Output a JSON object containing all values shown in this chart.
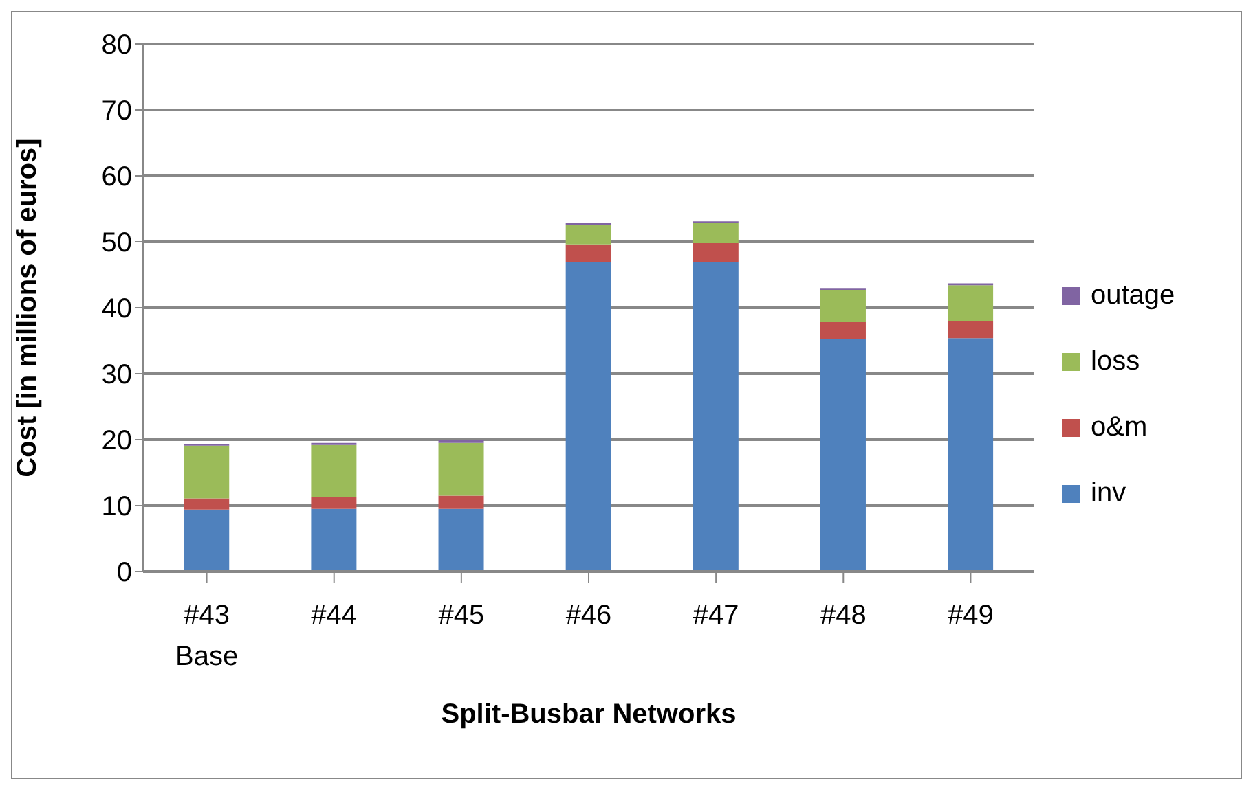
{
  "chart_data": {
    "type": "bar",
    "stacked": true,
    "xlabel": "Split-Busbar Networks",
    "ylabel": "Cost [in millions of euros]",
    "categories": [
      "#43\nBase",
      "#44",
      "#45",
      "#46",
      "#47",
      "#48",
      "#49"
    ],
    "series": [
      {
        "name": "inv",
        "color": "#4f81bd",
        "values": [
          9.4,
          9.5,
          9.5,
          46.9,
          46.9,
          35.3,
          35.4
        ]
      },
      {
        "name": "o&m",
        "color": "#c0504d",
        "values": [
          1.7,
          1.8,
          2.0,
          2.7,
          2.9,
          2.5,
          2.6
        ]
      },
      {
        "name": "loss",
        "color": "#9bbb59",
        "values": [
          8.0,
          7.9,
          8.0,
          3.0,
          3.1,
          4.9,
          5.4
        ]
      },
      {
        "name": "outage",
        "color": "#8064a2",
        "values": [
          0.2,
          0.3,
          0.4,
          0.3,
          0.2,
          0.3,
          0.3
        ]
      }
    ],
    "ylim": [
      0,
      80
    ],
    "yticks": [
      0,
      10,
      20,
      30,
      40,
      50,
      60,
      70,
      80
    ],
    "grid": "y",
    "legend": "right"
  }
}
